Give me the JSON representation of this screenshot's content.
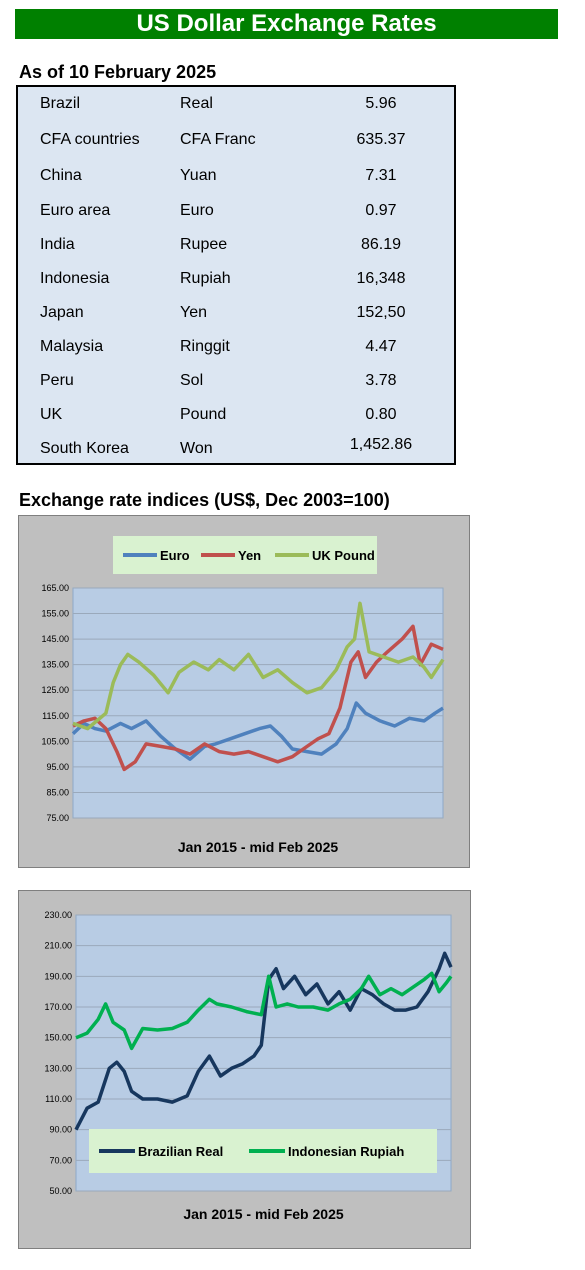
{
  "header": {
    "title": "US Dollar Exchange Rates"
  },
  "rates": {
    "as_of": "As of 10 February 2025",
    "rows": [
      {
        "country": "Brazil",
        "currency": "Real",
        "rate": "5.96"
      },
      {
        "country": "CFA countries",
        "currency": "CFA Franc",
        "rate": "635.37"
      },
      {
        "country": "China",
        "currency": "Yuan",
        "rate": "7.31"
      },
      {
        "country": "Euro area",
        "currency": "Euro",
        "rate": "0.97"
      },
      {
        "country": "India",
        "currency": "Rupee",
        "rate": "86.19"
      },
      {
        "country": "Indonesia",
        "currency": "Rupiah",
        "rate": "16,348"
      },
      {
        "country": "Japan",
        "currency": "Yen",
        "rate": "152,50"
      },
      {
        "country": "Malaysia",
        "currency": "Ringgit",
        "rate": "4.47"
      },
      {
        "country": "Peru",
        "currency": "Sol",
        "rate": "3.78"
      },
      {
        "country": "UK",
        "currency": "Pound",
        "rate": "0.80"
      },
      {
        "country": "South Korea",
        "currency": "Won",
        "rate": "1,452.86"
      }
    ]
  },
  "indices": {
    "title": "Exchange rate indices (US$, Dec 2003=100)"
  },
  "chart_data": [
    {
      "type": "line",
      "xlabel": "Jan 2015 - mid Feb 2025",
      "ylim": [
        75,
        165
      ],
      "yticks": [
        "165.00",
        "155.00",
        "145.00",
        "135.00",
        "125.00",
        "115.00",
        "105.00",
        "95.00",
        "85.00",
        "75.00"
      ],
      "grid": true,
      "legend": "top",
      "x_start": 2015.0,
      "x_end": 2025.12,
      "series": [
        {
          "name": "Euro",
          "color": "#4f81bd",
          "x": [
            2015.0,
            2015.3,
            2015.6,
            2015.9,
            2016.3,
            2016.6,
            2017.0,
            2017.4,
            2017.8,
            2018.2,
            2018.6,
            2018.9,
            2019.3,
            2019.7,
            2020.1,
            2020.4,
            2020.7,
            2021.0,
            2021.4,
            2021.8,
            2022.2,
            2022.5,
            2022.75,
            2023.0,
            2023.4,
            2023.8,
            2024.2,
            2024.6,
            2024.9,
            2025.12
          ],
          "y": [
            108,
            112,
            110,
            109,
            112,
            110,
            113,
            107,
            102,
            98,
            103,
            104,
            106,
            108,
            110,
            111,
            107,
            102,
            101,
            100,
            104,
            110,
            120,
            116,
            113,
            111,
            114,
            113,
            116,
            118
          ]
        },
        {
          "name": "Yen",
          "color": "#c0504d",
          "x": [
            2015.0,
            2015.3,
            2015.6,
            2015.9,
            2016.2,
            2016.4,
            2016.7,
            2017.0,
            2017.4,
            2017.8,
            2018.2,
            2018.6,
            2019.0,
            2019.4,
            2019.8,
            2020.2,
            2020.6,
            2021.0,
            2021.3,
            2021.7,
            2022.0,
            2022.3,
            2022.6,
            2022.8,
            2023.0,
            2023.3,
            2023.6,
            2024.0,
            2024.3,
            2024.5,
            2024.8,
            2025.12
          ],
          "y": [
            111,
            113,
            114,
            110,
            101,
            94,
            97,
            104,
            103,
            102,
            100,
            104,
            101,
            100,
            101,
            99,
            97,
            99,
            102,
            106,
            108,
            118,
            136,
            140,
            130,
            136,
            140,
            145,
            150,
            135,
            143,
            141
          ]
        },
        {
          "name": "UK Pound",
          "color": "#9bbb59",
          "x": [
            2015.0,
            2015.4,
            2015.9,
            2016.1,
            2016.3,
            2016.5,
            2016.8,
            2017.2,
            2017.6,
            2017.9,
            2018.3,
            2018.7,
            2019.0,
            2019.4,
            2019.8,
            2020.2,
            2020.6,
            2021.0,
            2021.4,
            2021.8,
            2022.2,
            2022.5,
            2022.7,
            2022.85,
            2023.1,
            2023.5,
            2023.9,
            2024.3,
            2024.6,
            2024.8,
            2025.12
          ],
          "y": [
            112,
            110,
            116,
            128,
            135,
            139,
            136,
            131,
            124,
            132,
            136,
            133,
            137,
            133,
            139,
            130,
            133,
            128,
            124,
            126,
            133,
            142,
            145,
            159,
            140,
            138,
            136,
            138,
            134,
            130,
            137
          ]
        }
      ]
    },
    {
      "type": "line",
      "xlabel": "Jan 2015 - mid Feb  2025",
      "ylim": [
        50,
        230
      ],
      "yticks": [
        "230.00",
        "210.00",
        "190.00",
        "170.00",
        "150.00",
        "130.00",
        "110.00",
        "90.00",
        "70.00",
        "50.00"
      ],
      "grid": true,
      "legend": "bottom",
      "x_start": 2015.0,
      "x_end": 2025.12,
      "series": [
        {
          "name": "Brazilian Real",
          "color": "#17375e",
          "x": [
            2015.0,
            2015.3,
            2015.6,
            2015.9,
            2016.1,
            2016.3,
            2016.5,
            2016.8,
            2017.2,
            2017.6,
            2018.0,
            2018.3,
            2018.6,
            2018.9,
            2019.2,
            2019.5,
            2019.8,
            2020.0,
            2020.2,
            2020.4,
            2020.6,
            2020.9,
            2021.2,
            2021.5,
            2021.8,
            2022.1,
            2022.4,
            2022.7,
            2023.0,
            2023.3,
            2023.6,
            2023.9,
            2024.2,
            2024.5,
            2024.8,
            2024.95,
            2025.12
          ],
          "y": [
            90,
            104,
            108,
            130,
            134,
            128,
            115,
            110,
            110,
            108,
            112,
            128,
            138,
            125,
            130,
            133,
            138,
            145,
            188,
            195,
            182,
            190,
            178,
            185,
            172,
            180,
            168,
            182,
            178,
            172,
            168,
            168,
            170,
            180,
            195,
            205,
            196
          ]
        },
        {
          "name": "Indonesian Rupiah",
          "color": "#00b050",
          "x": [
            2015.0,
            2015.3,
            2015.6,
            2015.8,
            2016.0,
            2016.3,
            2016.5,
            2016.8,
            2017.2,
            2017.6,
            2018.0,
            2018.3,
            2018.6,
            2018.8,
            2019.2,
            2019.6,
            2020.0,
            2020.2,
            2020.4,
            2020.7,
            2021.0,
            2021.4,
            2021.8,
            2022.1,
            2022.4,
            2022.7,
            2022.9,
            2023.2,
            2023.5,
            2023.8,
            2024.1,
            2024.4,
            2024.6,
            2024.8,
            2025.0,
            2025.12
          ],
          "y": [
            150,
            153,
            162,
            172,
            160,
            155,
            143,
            156,
            155,
            156,
            160,
            168,
            175,
            172,
            170,
            167,
            165,
            190,
            170,
            172,
            170,
            170,
            168,
            172,
            175,
            182,
            190,
            178,
            182,
            178,
            183,
            188,
            192,
            180,
            186,
            190
          ]
        }
      ]
    }
  ]
}
